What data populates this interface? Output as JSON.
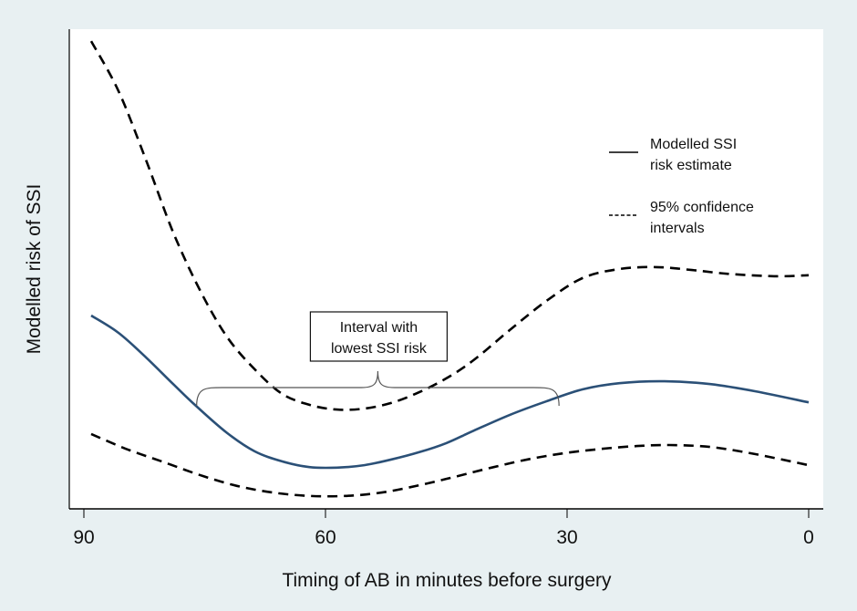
{
  "chart_data": {
    "type": "line",
    "title": "",
    "xlabel": "Timing of AB in minutes before surgery",
    "ylabel": "Modelled risk of SSI",
    "xlim": [
      90,
      0
    ],
    "ylim": [
      0,
      1
    ],
    "x_reversed": true,
    "x_ticks": [
      90,
      60,
      30,
      0
    ],
    "x_tick_labels": [
      "90",
      "60",
      "30",
      "0"
    ],
    "y_ticks_shown": false,
    "y_units": "relative (no tick labels shown)",
    "grid": false,
    "legend_position": "top-right",
    "series": [
      {
        "name": "Modelled SSI risk estimate",
        "legend_label_lines": [
          "Modelled SSI",
          "risk estimate"
        ],
        "style": "solid",
        "color": "#2b5077",
        "x": [
          89.1,
          85.7,
          82.3,
          78.9,
          76.1,
          72.2,
          68.8,
          65.4,
          62.0,
          58.6,
          55.2,
          51.8,
          48.4,
          45.0,
          41.6,
          37.1,
          32.6,
          28.1,
          23.5,
          17.9,
          12.2,
          6.6,
          0
        ],
        "values": [
          0.403,
          0.367,
          0.316,
          0.26,
          0.215,
          0.158,
          0.12,
          0.099,
          0.087,
          0.086,
          0.091,
          0.103,
          0.118,
          0.137,
          0.163,
          0.196,
          0.224,
          0.249,
          0.262,
          0.266,
          0.26,
          0.245,
          0.222
        ]
      },
      {
        "name": "95% confidence intervals (upper)",
        "style": "dashed",
        "color": "#000000",
        "x": [
          89.1,
          85.7,
          82.3,
          78.9,
          75.5,
          72.2,
          68.8,
          65.4,
          62.0,
          58.6,
          55.2,
          51.8,
          48.4,
          45.0,
          41.6,
          37.1,
          32.6,
          28.1,
          23.5,
          19.0,
          14.5,
          10.0,
          4.3,
          0
        ],
        "values": [
          0.975,
          0.871,
          0.728,
          0.576,
          0.453,
          0.358,
          0.291,
          0.24,
          0.217,
          0.207,
          0.209,
          0.221,
          0.243,
          0.272,
          0.31,
          0.373,
          0.433,
          0.481,
          0.5,
          0.504,
          0.498,
          0.49,
          0.485,
          0.487
        ]
      },
      {
        "name": "95% confidence intervals (lower)",
        "style": "dashed",
        "color": "#000000",
        "x": [
          89.1,
          84.6,
          80.0,
          75.5,
          71.0,
          66.5,
          62.0,
          57.5,
          53.0,
          48.4,
          43.9,
          39.4,
          34.9,
          30.4,
          25.8,
          21.3,
          17.3,
          12.2,
          6.6,
          0
        ],
        "values": [
          0.156,
          0.124,
          0.097,
          0.07,
          0.048,
          0.034,
          0.027,
          0.027,
          0.034,
          0.049,
          0.067,
          0.086,
          0.103,
          0.116,
          0.125,
          0.131,
          0.133,
          0.129,
          0.114,
          0.091
        ]
      }
    ],
    "legend": [
      {
        "label_lines": [
          "Modelled SSI",
          "risk estimate"
        ],
        "style": "solid"
      },
      {
        "label_lines": [
          "95% confidence",
          "intervals"
        ],
        "style": "dashed"
      }
    ],
    "annotations": [
      {
        "text_lines": [
          "Interval with",
          "lowest SSI risk"
        ],
        "type": "brace",
        "x_range": [
          76,
          31
        ],
        "brace_tip_x": 53.5
      }
    ]
  }
}
